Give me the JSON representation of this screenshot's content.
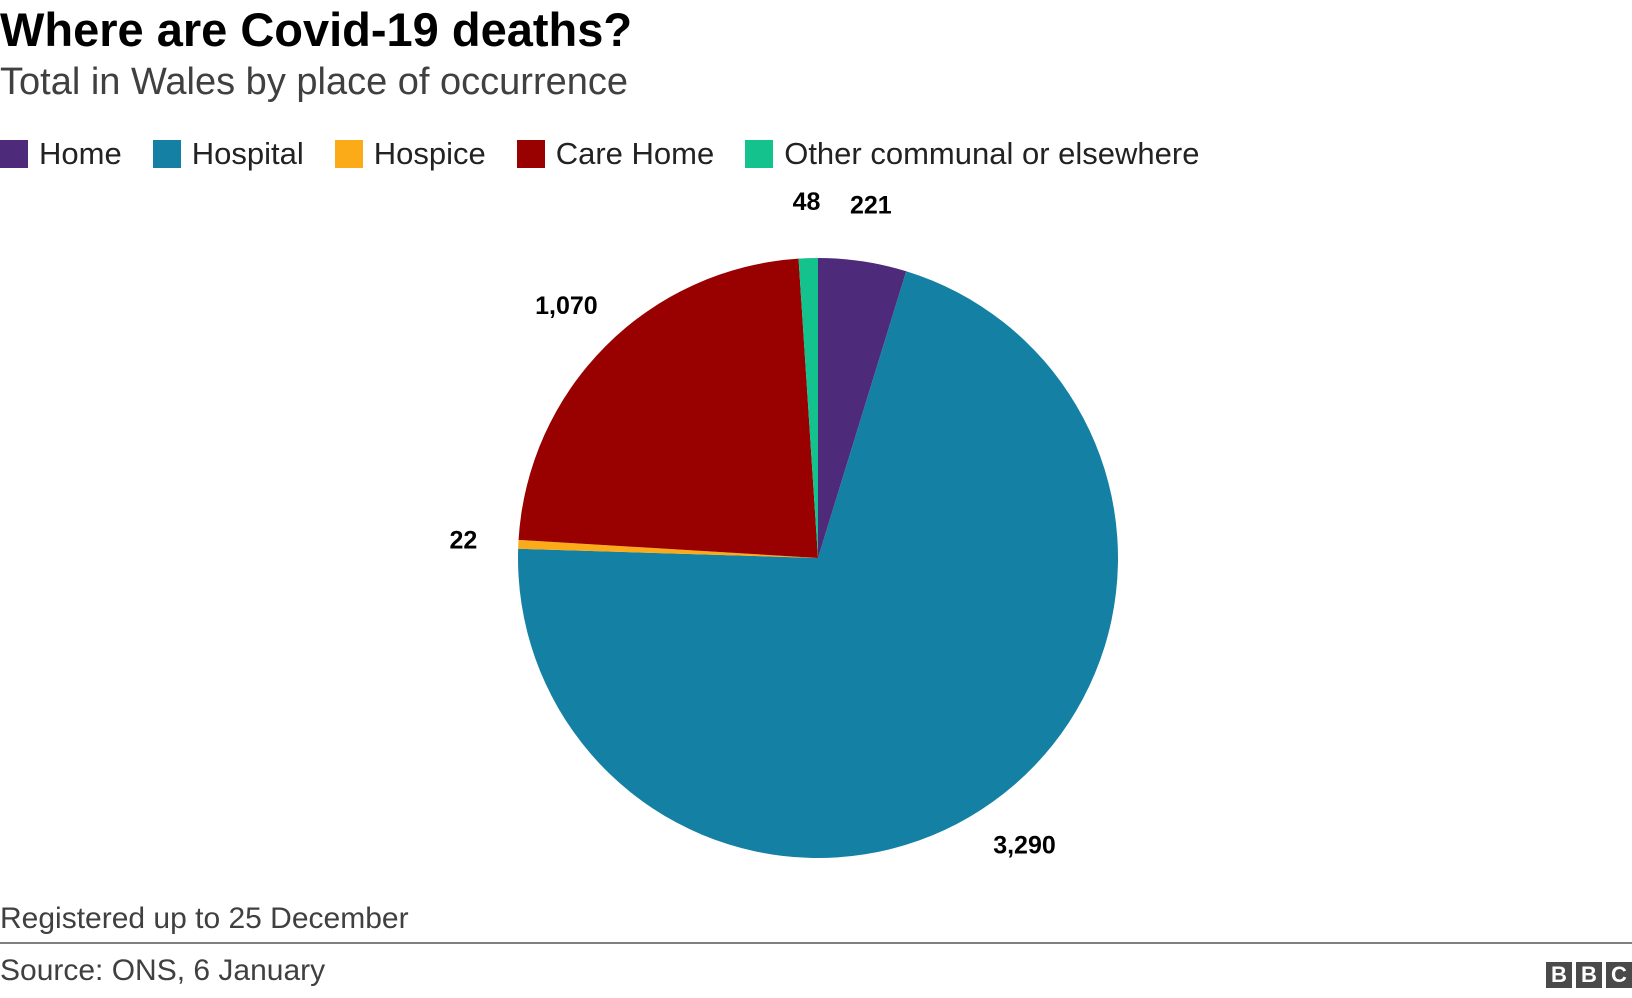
{
  "header": {
    "title": "Where are Covid-19 deaths?",
    "subtitle": "Total in Wales by place of occurrence"
  },
  "chart_data": {
    "type": "pie",
    "title": "Where are Covid-19 deaths?",
    "subtitle": "Total in Wales by place of occurrence",
    "legend_position": "top-left",
    "start": "12 o'clock",
    "direction": "clockwise",
    "slices": [
      {
        "name": "Home",
        "value": 221,
        "label": "221",
        "color": "#4e2a7a"
      },
      {
        "name": "Hospital",
        "value": 3290,
        "label": "3,290",
        "color": "#1480a3"
      },
      {
        "name": "Hospice",
        "value": 22,
        "label": "22",
        "color": "#fbab18"
      },
      {
        "name": "Care Home",
        "value": 1070,
        "label": "1,070",
        "color": "#990000"
      },
      {
        "name": "Other communal or elsewhere",
        "value": 48,
        "label": "48",
        "color": "#13c28c"
      }
    ]
  },
  "footer": {
    "note": "Registered up to 25 December",
    "source": "Source: ONS, 6 January",
    "logo_letters": [
      "B",
      "B",
      "C"
    ]
  }
}
